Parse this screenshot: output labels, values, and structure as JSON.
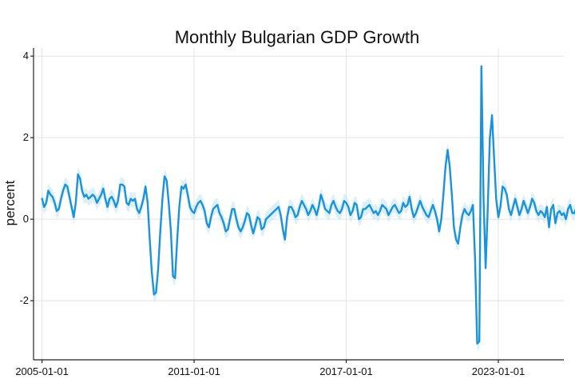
{
  "chart_data": {
    "type": "line",
    "title": "Monthly Bulgarian GDP Growth",
    "ylabel": "percent",
    "xlabel": "",
    "x_ticks": [
      "2005-01-01",
      "2011-01-01",
      "2017-01-01",
      "2023-01-01"
    ],
    "y_ticks": [
      "-2",
      "0",
      "2",
      "4"
    ],
    "xlim": [
      "2004-09-01",
      "2025-08-01"
    ],
    "ylim": [
      -3.45,
      4.2
    ],
    "grid": true,
    "legend": "none",
    "colors": {
      "line": "#1b93d8",
      "band": "#bfe4f6"
    },
    "series": [
      {
        "start": "2005-01-01",
        "frequency": "monthly",
        "values": [
          0.5,
          0.3,
          0.4,
          0.7,
          0.6,
          0.55,
          0.4,
          0.2,
          0.25,
          0.5,
          0.7,
          0.85,
          0.8,
          0.55,
          0.3,
          0.05,
          0.4,
          1.1,
          1.0,
          0.7,
          0.55,
          0.6,
          0.5,
          0.55,
          0.6,
          0.55,
          0.4,
          0.5,
          0.6,
          0.75,
          0.5,
          0.3,
          0.5,
          0.55,
          0.45,
          0.3,
          0.45,
          0.85,
          0.85,
          0.8,
          0.4,
          0.35,
          0.5,
          0.45,
          0.5,
          0.25,
          0.15,
          0.3,
          0.5,
          0.8,
          0.4,
          -0.5,
          -1.3,
          -1.85,
          -1.8,
          -1.2,
          -0.3,
          0.5,
          1.05,
          0.95,
          0.4,
          -0.3,
          -1.4,
          -1.45,
          -0.5,
          0.3,
          0.8,
          0.75,
          0.85,
          0.6,
          0.3,
          0.2,
          0.15,
          0.3,
          0.4,
          0.45,
          0.35,
          0.2,
          -0.1,
          -0.2,
          0.05,
          0.25,
          0.3,
          0.35,
          0.15,
          0.05,
          -0.1,
          -0.3,
          -0.25,
          0.0,
          0.25,
          0.25,
          0.0,
          -0.2,
          -0.3,
          -0.2,
          -0.05,
          0.15,
          0.1,
          -0.15,
          -0.35,
          -0.15,
          0.05,
          0.0,
          -0.25,
          -0.2,
          0.0,
          0.05,
          0.1,
          0.15,
          0.2,
          0.25,
          0.3,
          0.1,
          -0.25,
          -0.5,
          0.05,
          0.3,
          0.3,
          0.2,
          0.05,
          0.1,
          0.3,
          0.45,
          0.35,
          0.25,
          0.1,
          0.2,
          0.35,
          0.25,
          0.1,
          0.3,
          0.6,
          0.45,
          0.25,
          0.2,
          0.15,
          0.35,
          0.45,
          0.3,
          0.2,
          0.15,
          0.25,
          0.45,
          0.4,
          0.3,
          0.1,
          0.2,
          0.4,
          0.35,
          0.0,
          0.05,
          0.25,
          0.25,
          0.3,
          0.35,
          0.25,
          0.15,
          0.2,
          0.1,
          0.2,
          0.35,
          0.3,
          0.25,
          0.1,
          0.2,
          0.3,
          0.35,
          0.25,
          0.15,
          0.2,
          0.4,
          0.3,
          0.35,
          0.55,
          0.25,
          0.05,
          0.15,
          0.3,
          0.45,
          0.3,
          0.2,
          0.1,
          0.05,
          0.2,
          0.35,
          0.2,
          0.0,
          -0.3,
          0.0,
          0.6,
          1.3,
          1.7,
          1.3,
          0.6,
          -0.2,
          -0.5,
          -0.6,
          -0.2,
          0.1,
          0.25,
          0.15,
          0.1,
          0.2,
          0.35,
          -1.0,
          -3.05,
          -3.0,
          3.75,
          0.5,
          -1.2,
          0.3,
          2.0,
          2.55,
          1.5,
          0.5,
          0.05,
          0.3,
          0.8,
          0.75,
          0.6,
          0.25,
          0.1,
          0.3,
          0.5,
          0.3,
          0.1,
          0.25,
          0.45,
          0.3,
          0.15,
          0.3,
          0.5,
          0.4,
          0.2,
          0.1,
          0.2,
          0.15,
          0.05,
          0.3,
          -0.2,
          0.25,
          0.35,
          -0.1,
          0.15,
          0.2,
          0.1,
          0.15,
          0.0,
          0.25,
          0.35,
          0.15,
          0.15,
          0.3,
          0.1,
          0.05,
          0.25,
          0.35,
          0.4,
          0.3,
          0.2,
          0.3,
          0.25,
          0.1,
          0.0,
          -0.1,
          0.15,
          0.4,
          0.5,
          0.35,
          0.2,
          0.15,
          0.15,
          0.2
        ]
      }
    ]
  }
}
